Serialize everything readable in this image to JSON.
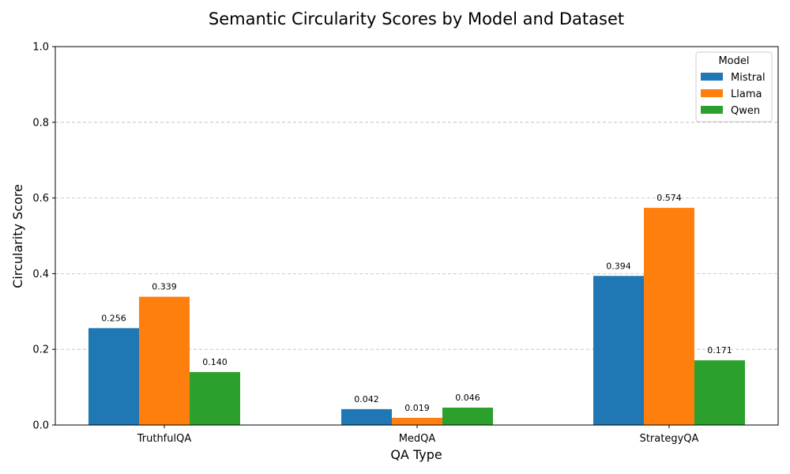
{
  "chart_data": {
    "type": "bar",
    "title": "Semantic Circularity Scores by Model and Dataset",
    "xlabel": "QA Type",
    "ylabel": "Circularity Score",
    "categories": [
      "TruthfulQA",
      "MedQA",
      "StrategyQA"
    ],
    "series": [
      {
        "name": "Mistral",
        "color": "#1f77b4",
        "values": [
          0.256,
          0.042,
          0.394
        ],
        "labels": [
          "0.256",
          "0.042",
          "0.394"
        ]
      },
      {
        "name": "Llama",
        "color": "#ff7f0e",
        "values": [
          0.339,
          0.019,
          0.574
        ],
        "labels": [
          "0.339",
          "0.019",
          "0.574"
        ]
      },
      {
        "name": "Qwen",
        "color": "#2ca02c",
        "values": [
          0.14,
          0.046,
          0.171
        ],
        "labels": [
          "0.140",
          "0.046",
          "0.171"
        ]
      }
    ],
    "ylim": [
      0,
      1.0
    ],
    "yticks": [
      0.0,
      0.2,
      0.4,
      0.6,
      0.8,
      1.0
    ],
    "ytick_labels": [
      "0.0",
      "0.2",
      "0.4",
      "0.6",
      "0.8",
      "1.0"
    ],
    "grid": "y-dashed",
    "legend": {
      "title": "Model",
      "placement": "top-right"
    }
  }
}
